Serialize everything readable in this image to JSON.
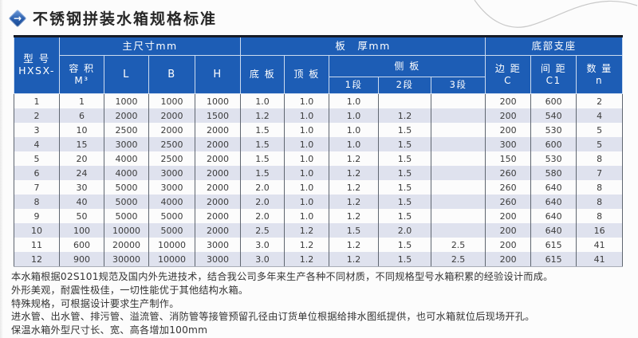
{
  "title": {
    "text": "不锈钢拼装水箱规格标准",
    "icon_arrow": "→"
  },
  "colors": {
    "header_blue": "#1d5db5",
    "row_stripe": "#dfe2ee",
    "table_top_border": "#161b26",
    "text_dark": "#333333"
  },
  "table": {
    "header": {
      "model": "型 号",
      "model_sub": "HXSX-",
      "main_dims": "主尺寸mm",
      "capacity": "容 积",
      "capacity_unit": "M³",
      "L": "L",
      "B": "B",
      "H": "H",
      "thickness": "板　厚mm",
      "bottom_plate": "底 板",
      "top_plate": "顶 板",
      "side_plate": "侧 板",
      "seg1": "1段",
      "seg2": "2段",
      "seg3": "3段",
      "support": "底部支座",
      "edge": "边 距",
      "edge_sub": "C",
      "spacing": "间 距",
      "spacing_sub": "C1",
      "qty": "数 量",
      "qty_sub": "n"
    },
    "rows": [
      [
        "1",
        "1",
        "1000",
        "1000",
        "1000",
        "1.0",
        "1.0",
        "1.0",
        "",
        "",
        "200",
        "600",
        "2"
      ],
      [
        "2",
        "6",
        "2000",
        "2000",
        "1500",
        "1.2",
        "1.0",
        "1.0",
        "1.2",
        "",
        "200",
        "540",
        "4"
      ],
      [
        "3",
        "10",
        "2500",
        "2000",
        "2000",
        "1.5",
        "1.0",
        "1.0",
        "1.5",
        "",
        "200",
        "530",
        "5"
      ],
      [
        "4",
        "15",
        "3000",
        "2500",
        "2000",
        "1.5",
        "1.0",
        "1.0",
        "1.5",
        "",
        "300",
        "600",
        "5"
      ],
      [
        "5",
        "20",
        "4000",
        "2500",
        "2000",
        "1.5",
        "1.0",
        "1.2",
        "1.5",
        "",
        "150",
        "530",
        "8"
      ],
      [
        "6",
        "24",
        "4000",
        "3000",
        "2000",
        "1.5",
        "1.0",
        "1.2",
        "1.5",
        "",
        "260",
        "580",
        "7"
      ],
      [
        "7",
        "30",
        "5000",
        "3000",
        "2000",
        "2.0",
        "1.0",
        "1.2",
        "1.5",
        "",
        "260",
        "640",
        "8"
      ],
      [
        "8",
        "40",
        "5000",
        "4000",
        "2000",
        "2.0",
        "1.0",
        "1.2",
        "1.5",
        "",
        "260",
        "640",
        "8"
      ],
      [
        "9",
        "50",
        "5000",
        "5000",
        "2000",
        "2.0",
        "1.0",
        "1.2",
        "1.5",
        "",
        "200",
        "640",
        "8"
      ],
      [
        "10",
        "100",
        "10000",
        "5000",
        "2000",
        "2.5",
        "1.2",
        "1.5",
        "2.0",
        "",
        "200",
        "640",
        "16"
      ],
      [
        "11",
        "600",
        "20000",
        "10000",
        "3000",
        "3.0",
        "1.2",
        "1.2",
        "1.5",
        "2.5",
        "200",
        "615",
        "41"
      ],
      [
        "12",
        "900",
        "30000",
        "10000",
        "3000",
        "3.0",
        "1.2",
        "1.2",
        "1.5",
        "2.5",
        "200",
        "615",
        "41"
      ]
    ]
  },
  "notes": [
    "本水箱根据02S101规范及国内外先进技术，结合我公司多年来生产各种不同材质，不同规格型号水箱积累的经验设计而成。",
    "外形美观，耐震性极佳，一切性能优于其他结构水箱。",
    "特殊规格，可根据设计要求生产制作。",
    "进水管、出水管、排污管、溢流管、消防管等接管预留孔径由订货单位根据给排水图纸提供，也可水箱就位后现场开孔。",
    "保温水箱外型尺寸长、宽、高各增加100mm"
  ]
}
